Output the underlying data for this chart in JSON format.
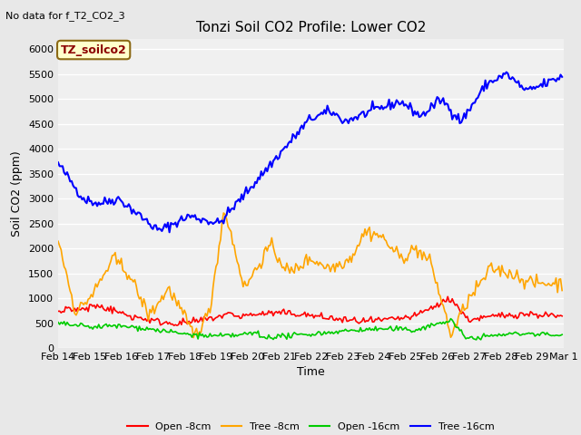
{
  "title": "Tonzi Soil CO2 Profile: Lower CO2",
  "subtitle": "No data for f_T2_CO2_3",
  "xlabel": "Time",
  "ylabel": "Soil CO2 (ppm)",
  "legend_label": "TZ_soilco2",
  "series_labels": [
    "Open -8cm",
    "Tree -8cm",
    "Open -16cm",
    "Tree -16cm"
  ],
  "series_colors": [
    "#ff0000",
    "#ffa500",
    "#00cc00",
    "#0000ff"
  ],
  "ylim": [
    0,
    6200
  ],
  "yticks": [
    0,
    500,
    1000,
    1500,
    2000,
    2500,
    3000,
    3500,
    4000,
    4500,
    5000,
    5500,
    6000
  ],
  "bg_color": "#e8e8e8",
  "plot_bg": "#f0f0f0",
  "n_points": 336,
  "date_start": "2000-02-14",
  "date_end": "2000-03-01",
  "title_fontsize": 11,
  "axis_fontsize": 8,
  "label_fontsize": 9
}
